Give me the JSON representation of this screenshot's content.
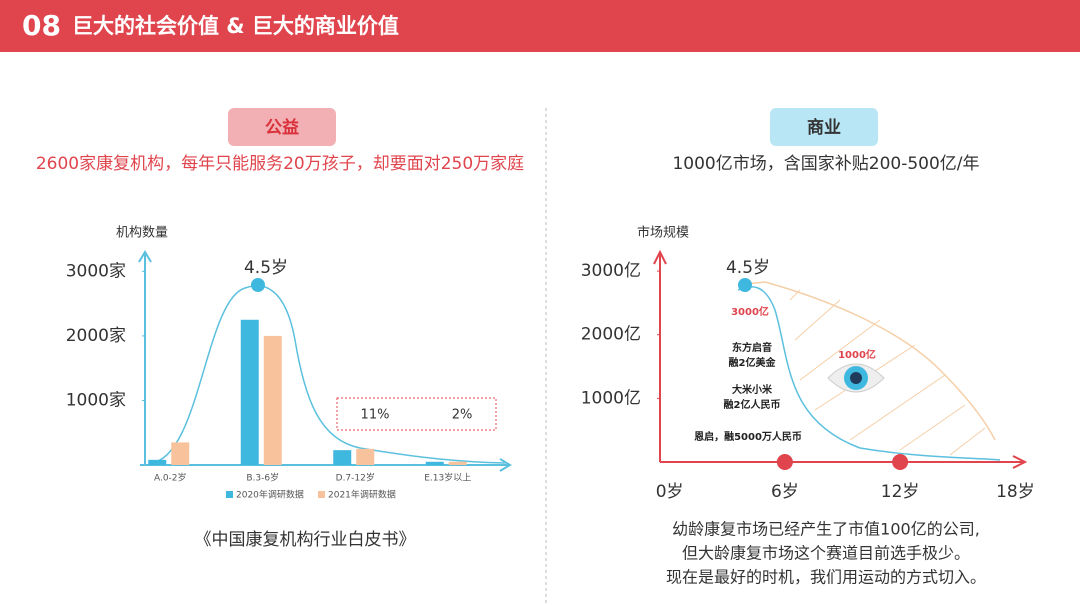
{
  "header": {
    "number": "08",
    "title": "巨大的社会价值 & 巨大的商业价值"
  },
  "left": {
    "tag": "公益",
    "subtitle": "2600家康复机构，每年只能服务20万孩子，却要面对250万家庭",
    "source": "《中国康复机构行业白皮书》"
  },
  "right": {
    "tag": "商业",
    "subtitle": "1000亿市场，含国家补贴200-500亿/年",
    "notes": [
      "幼龄康复市场已经产生了市值100亿的公司,",
      "但大龄康复市场这个赛道目前选手极少。",
      "现在是最好的时机，我们用运动的方式切入。"
    ]
  },
  "chart_data": [
    {
      "type": "bar",
      "y_label": "机构数量",
      "peak_label": "4.5岁",
      "categories": [
        "A.0-2岁",
        "B.3-6岁",
        "D.7-12岁",
        "E.13岁以上"
      ],
      "series": [
        {
          "name": "2020年调研数据",
          "color": "#3fb8e0",
          "values": [
            80,
            2250,
            230,
            50
          ]
        },
        {
          "name": "2021年调研数据",
          "color": "#f8c29d",
          "values": [
            350,
            2000,
            250,
            50
          ]
        }
      ],
      "ylim": [
        0,
        3300
      ],
      "yticks": [
        {
          "value": 1000,
          "label": "1000家"
        },
        {
          "value": 2000,
          "label": "2000家"
        },
        {
          "value": 3000,
          "label": "3000家"
        }
      ],
      "annotations": [
        "11%",
        "2%"
      ]
    },
    {
      "type": "area",
      "y_label": "市场规模",
      "peak_label": "4.5岁",
      "color": "#e0454d",
      "xlim": [
        -0.5,
        18.5
      ],
      "xticks": [
        {
          "value": 0,
          "label": "0岁"
        },
        {
          "value": 6,
          "label": "6岁"
        },
        {
          "value": 12,
          "label": "12岁"
        },
        {
          "value": 18,
          "label": "18岁"
        }
      ],
      "ylim": [
        0,
        3300
      ],
      "yticks": [
        {
          "value": 1000,
          "label": "1000亿"
        },
        {
          "value": 2000,
          "label": "2000亿"
        },
        {
          "value": 3000,
          "label": "3000亿"
        }
      ],
      "annotations": [
        "3000亿",
        "东方启音",
        "融2亿美金",
        "大米小米",
        "融2亿人民币",
        "恩启，融5000万人民币",
        "1000亿"
      ]
    }
  ]
}
